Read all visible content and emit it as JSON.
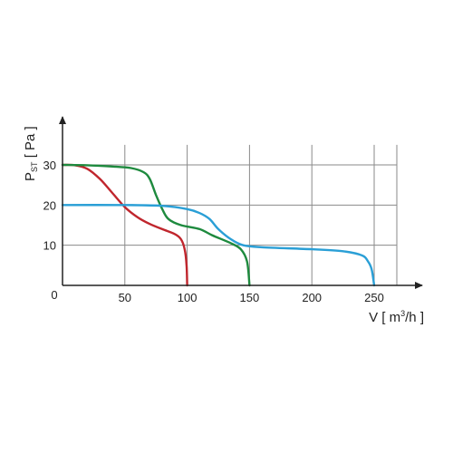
{
  "chart_data": {
    "type": "line",
    "xlabel": {
      "main": "V [ m",
      "sup": "3",
      "tail": "/h ]"
    },
    "ylabel": {
      "main": "P",
      "sub": "ST",
      "tail": " [ Pa ]"
    },
    "origin_label": "0",
    "xlim": [
      0,
      280
    ],
    "ylim": [
      0,
      35
    ],
    "x_ticks": [
      50,
      100,
      150,
      200,
      250
    ],
    "y_ticks": [
      10,
      20,
      30
    ],
    "grid": true,
    "series": [
      {
        "color": "#c0262d",
        "points": [
          [
            0,
            30
          ],
          [
            10,
            29.9
          ],
          [
            20,
            29
          ],
          [
            30,
            26.5
          ],
          [
            40,
            23
          ],
          [
            50,
            19.5
          ],
          [
            60,
            17
          ],
          [
            70,
            15.3
          ],
          [
            80,
            14
          ],
          [
            90,
            12.8
          ],
          [
            95,
            11.5
          ],
          [
            98,
            9
          ],
          [
            99.5,
            5
          ],
          [
            100,
            0
          ]
        ]
      },
      {
        "color": "#1e8a3e",
        "points": [
          [
            0,
            30
          ],
          [
            20,
            29.9
          ],
          [
            40,
            29.6
          ],
          [
            55,
            29.2
          ],
          [
            65,
            28.2
          ],
          [
            70,
            26.5
          ],
          [
            75,
            22.5
          ],
          [
            80,
            19
          ],
          [
            85,
            16.5
          ],
          [
            95,
            15
          ],
          [
            110,
            14
          ],
          [
            120,
            12.5
          ],
          [
            135,
            10.5
          ],
          [
            143,
            9
          ],
          [
            148,
            6
          ],
          [
            150,
            0
          ]
        ]
      },
      {
        "color": "#2a9fd6",
        "points": [
          [
            0,
            20
          ],
          [
            50,
            20
          ],
          [
            80,
            19.8
          ],
          [
            100,
            19
          ],
          [
            110,
            18
          ],
          [
            118,
            16.5
          ],
          [
            125,
            14
          ],
          [
            135,
            11.5
          ],
          [
            145,
            10
          ],
          [
            160,
            9.5
          ],
          [
            200,
            9
          ],
          [
            225,
            8.5
          ],
          [
            240,
            7.5
          ],
          [
            245,
            6
          ],
          [
            248,
            4
          ],
          [
            250,
            0
          ]
        ]
      }
    ]
  }
}
